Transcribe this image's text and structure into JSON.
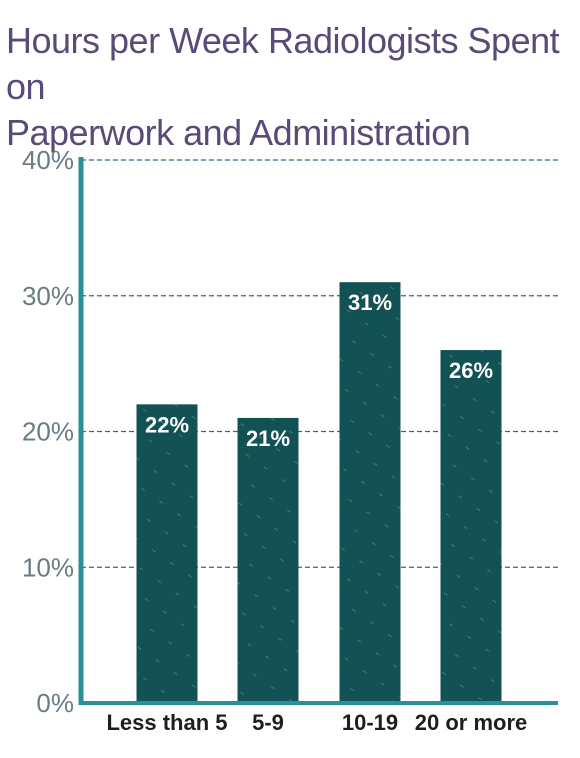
{
  "title_lines": [
    "Hours per Week Radiologists Spent on",
    "Paperwork and Administration"
  ],
  "colors": {
    "bar": "#135254",
    "axis": "#2a8f96",
    "grid": "#2d6d80",
    "title": "#5a4a78"
  },
  "chart_data": {
    "type": "bar",
    "title": "Hours per Week Radiologists Spent on Paperwork and Administration",
    "categories": [
      "Less than 5",
      "5-9",
      "10-19",
      "20 or more"
    ],
    "values": [
      22,
      21,
      31,
      26
    ],
    "value_labels": [
      "22%",
      "21%",
      "31%",
      "26%"
    ],
    "ylim": [
      0,
      40
    ],
    "yticks": [
      0,
      10,
      20,
      30,
      40
    ],
    "ytick_labels": [
      "0%",
      "10%",
      "20%",
      "30%",
      "40%"
    ],
    "xlabel": "",
    "ylabel": "",
    "grid": true,
    "legend": "none"
  }
}
